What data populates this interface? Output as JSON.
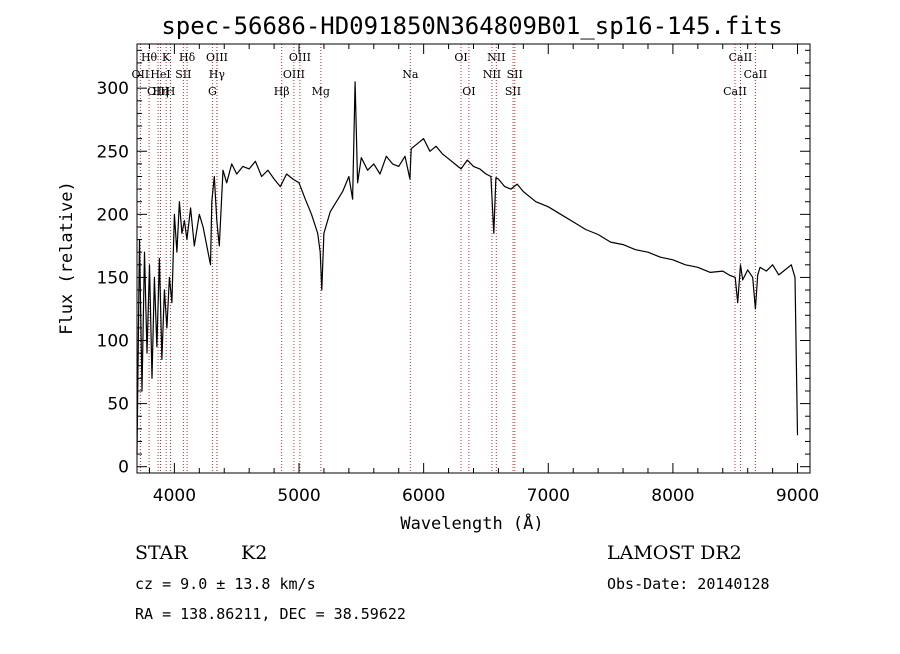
{
  "chart_data": {
    "type": "line",
    "title": "spec-56686-HD091850N364809B01_sp16-145.fits",
    "xlabel": "Wavelength (Å)",
    "ylabel": "Flux (relative)",
    "xlim": [
      3700,
      9100
    ],
    "ylim": [
      -5,
      335
    ],
    "x_ticks": [
      4000,
      5000,
      6000,
      7000,
      8000,
      9000
    ],
    "y_ticks": [
      0,
      50,
      100,
      150,
      200,
      250,
      300
    ],
    "grid": false,
    "series": [
      {
        "x": [
          3700,
          3720,
          3740,
          3760,
          3780,
          3800,
          3820,
          3840,
          3860,
          3880,
          3900,
          3920,
          3940,
          3960,
          3980,
          4000,
          4020,
          4040,
          4060,
          4080,
          4100,
          4130,
          4160,
          4200,
          4230,
          4260,
          4290,
          4300,
          4320,
          4340,
          4360,
          4390,
          4420,
          4460,
          4500,
          4550,
          4600,
          4650,
          4700,
          4750,
          4800,
          4850,
          4900,
          4950,
          5000,
          5050,
          5100,
          5150,
          5170,
          5183,
          5200,
          5250,
          5300,
          5350,
          5400,
          5430,
          5450,
          5470,
          5500,
          5550,
          5600,
          5650,
          5700,
          5750,
          5800,
          5850,
          5890,
          5900,
          5950,
          6000,
          6050,
          6100,
          6150,
          6200,
          6250,
          6300,
          6350,
          6400,
          6450,
          6500,
          6540,
          6563,
          6580,
          6600,
          6650,
          6700,
          6750,
          6800,
          6850,
          6900,
          7000,
          7100,
          7200,
          7300,
          7400,
          7500,
          7600,
          7700,
          7800,
          7900,
          8000,
          8100,
          8200,
          8300,
          8400,
          8450,
          8500,
          8520,
          8542,
          8560,
          8600,
          8640,
          8662,
          8680,
          8700,
          8750,
          8800,
          8850,
          8900,
          8950,
          8980,
          9000
        ],
        "values": [
          10,
          180,
          60,
          170,
          90,
          160,
          70,
          150,
          95,
          165,
          85,
          140,
          110,
          150,
          130,
          200,
          170,
          210,
          185,
          195,
          180,
          205,
          175,
          200,
          190,
          175,
          160,
          210,
          230,
          195,
          175,
          235,
          225,
          240,
          232,
          238,
          236,
          242,
          230,
          235,
          228,
          222,
          232,
          228,
          225,
          212,
          200,
          185,
          170,
          140,
          185,
          202,
          210,
          218,
          230,
          212,
          305,
          225,
          245,
          235,
          240,
          232,
          246,
          240,
          238,
          246,
          228,
          252,
          256,
          260,
          250,
          254,
          248,
          244,
          240,
          236,
          243,
          238,
          236,
          232,
          230,
          185,
          229,
          228,
          222,
          220,
          224,
          218,
          214,
          210,
          206,
          200,
          194,
          188,
          184,
          178,
          176,
          172,
          170,
          166,
          164,
          160,
          158,
          154,
          155,
          152,
          150,
          130,
          160,
          148,
          156,
          150,
          125,
          152,
          158,
          155,
          160,
          152,
          156,
          160,
          150,
          25
        ]
      }
    ],
    "line_ids": [
      {
        "name": "OII",
        "x": 3727,
        "row": 1
      },
      {
        "name": "Hθ",
        "x": 3797,
        "row": 0
      },
      {
        "name": "OIII",
        "x": 3869,
        "row": 2
      },
      {
        "name": "HeI",
        "x": 3889,
        "row": 1
      },
      {
        "name": "Hη",
        "x": 3889,
        "row": 2
      },
      {
        "name": "K",
        "x": 3934,
        "row": 0
      },
      {
        "name": "H",
        "x": 3969,
        "row": 2
      },
      {
        "name": "SII",
        "x": 4072,
        "row": 1
      },
      {
        "name": "Hδ",
        "x": 4102,
        "row": 0
      },
      {
        "name": "OIII",
        "x": 4342,
        "row": 0
      },
      {
        "name": "Hγ",
        "x": 4341,
        "row": 1
      },
      {
        "name": "G",
        "x": 4305,
        "row": 2
      },
      {
        "name": "Hβ",
        "x": 4861,
        "row": 2
      },
      {
        "name": "OIII",
        "x": 4959,
        "row": 1
      },
      {
        "name": "OIII",
        "x": 5007,
        "row": 0
      },
      {
        "name": "Mg",
        "x": 5175,
        "row": 2
      },
      {
        "name": "Na",
        "x": 5893,
        "row": 1
      },
      {
        "name": "OI",
        "x": 6300,
        "row": 0
      },
      {
        "name": "OI",
        "x": 6363,
        "row": 2
      },
      {
        "name": "NII",
        "x": 6548,
        "row": 1
      },
      {
        "name": "NII",
        "x": 6583,
        "row": 0
      },
      {
        "name": "SII",
        "x": 6717,
        "row": 2
      },
      {
        "name": "SII",
        "x": 6731,
        "row": 1
      },
      {
        "name": "CaII",
        "x": 8498,
        "row": 2
      },
      {
        "name": "CaII",
        "x": 8542,
        "row": 0
      },
      {
        "name": "CaII",
        "x": 8662,
        "row": 1
      }
    ]
  },
  "footer": {
    "object_type": "STAR",
    "subclass": "K2",
    "survey": "LAMOST DR2",
    "redshift_line": "cz = 9.0 ± 13.8 km/s",
    "obs_date_line": "Obs-Date: 20140128",
    "coords_line": "RA = 138.86211, DEC =  38.59622"
  },
  "colors": {
    "spectrum": "#000000",
    "line_marker": "#b03030",
    "background": "#ffffff"
  }
}
